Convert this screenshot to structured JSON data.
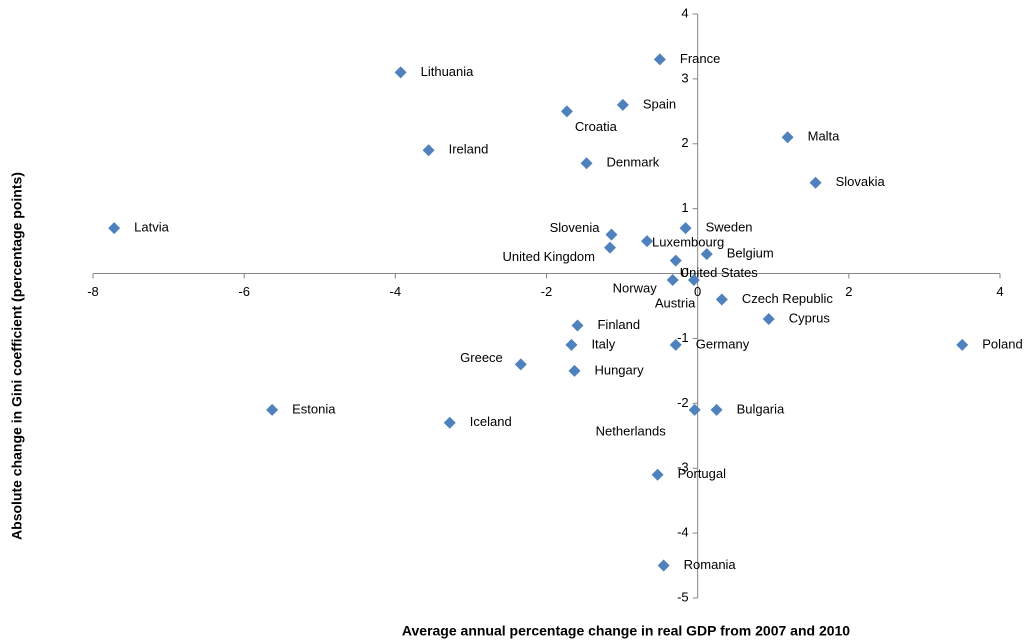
{
  "chart_data": {
    "type": "scatter",
    "x_label": "Average annual percentage change in real GDP from 2007 and 2010",
    "y_label": "Absolute change in Gini coefficient (percentage points)",
    "color": "#4f81bd",
    "labels": [
      "France",
      "Lithuania",
      "Spain",
      "Croatia",
      "Malta",
      "Ireland",
      "Denmark",
      "Slovakia",
      "Latvia",
      "Sweden",
      "Slovenia",
      "Luxembourg",
      "United Kingdom",
      "Belgium",
      "United States",
      "Norway",
      "Austria",
      "Czech Republic",
      "Cyprus",
      "Finland",
      "Italy",
      "Germany",
      "Poland",
      "Greece",
      "Hungary",
      "Estonia",
      "Bulgaria",
      "Netherlands",
      "Iceland",
      "Portugal",
      "Romania"
    ],
    "x": [
      -0.5,
      -3.93,
      -0.99,
      -1.73,
      1.19,
      -3.56,
      -1.47,
      1.56,
      -7.72,
      -0.16,
      -1.14,
      -0.67,
      -1.16,
      0.12,
      -0.29,
      -0.33,
      -0.05,
      0.32,
      0.94,
      -1.59,
      -1.67,
      -0.29,
      3.5,
      -2.34,
      -1.63,
      -5.63,
      0.25,
      -0.04,
      -3.28,
      -0.53,
      -0.45
    ],
    "y": [
      3.3,
      3.1,
      2.6,
      2.5,
      2.1,
      1.9,
      1.7,
      1.4,
      0.7,
      0.7,
      0.6,
      0.5,
      0.4,
      0.3,
      0.2,
      -0.1,
      -0.1,
      -0.4,
      -0.7,
      -0.8,
      -1.1,
      -1.1,
      -1.1,
      -1.4,
      -1.5,
      -2.1,
      -2.1,
      -2.1,
      -2.3,
      -3.1,
      -4.5
    ],
    "xlim": [
      -8,
      4
    ],
    "xticks": [
      -8,
      -6,
      -4,
      -2,
      0,
      2,
      4
    ],
    "ylim": [
      -5,
      4
    ],
    "yticks": [
      -5,
      -4,
      -3,
      -2,
      -1,
      0,
      1,
      2,
      3,
      4
    ]
  }
}
